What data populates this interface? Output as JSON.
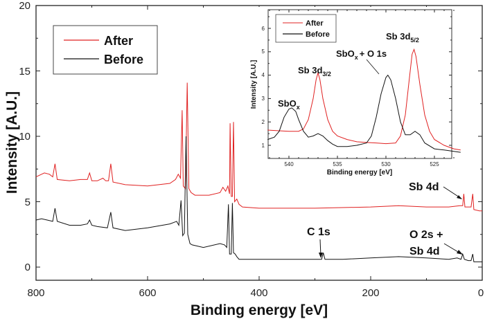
{
  "chart_data": [
    {
      "type": "line",
      "xlabel": "Binding energy [eV]",
      "ylabel": "Intensity [A.U.]",
      "xlim": [
        800,
        0
      ],
      "ylim": [
        -1,
        20
      ],
      "x_reversed": true,
      "xticks": [
        "800",
        "600",
        "400",
        "200",
        "0"
      ],
      "yticks": [
        "0",
        "5",
        "10",
        "15",
        "20"
      ],
      "legend": {
        "placement": "top-left",
        "entries": [
          "After",
          "Before"
        ]
      },
      "grid": false,
      "series": [
        {
          "name": "After",
          "color": "#e02020",
          "x": [
            800,
            790,
            785,
            776,
            770,
            766,
            762,
            740,
            720,
            708,
            704,
            700,
            690,
            680,
            675,
            670,
            666,
            662,
            640,
            600,
            560,
            550,
            545,
            541,
            538,
            536,
            532,
            529,
            526,
            522,
            515,
            490,
            470,
            465,
            460,
            456,
            453,
            452,
            450,
            448,
            446,
            444,
            440,
            436,
            430,
            400,
            300,
            200,
            150,
            100,
            60,
            40,
            35,
            33,
            31,
            26,
            20,
            17,
            15,
            5,
            0
          ],
          "y": [
            6.9,
            7.1,
            7.2,
            7.1,
            6.9,
            7.9,
            6.7,
            6.6,
            6.7,
            6.7,
            7.2,
            6.6,
            6.6,
            6.8,
            6.6,
            6.6,
            7.9,
            6.5,
            6.3,
            6.2,
            6.4,
            6.7,
            7.1,
            6.8,
            12.0,
            6.2,
            6.0,
            14.1,
            6.0,
            5.7,
            5.5,
            5.5,
            5.7,
            6.1,
            5.8,
            6.2,
            5.6,
            11.0,
            5.4,
            5.4,
            11.1,
            5.0,
            5.2,
            4.8,
            4.6,
            4.5,
            4.5,
            4.6,
            4.7,
            4.6,
            4.6,
            4.7,
            4.7,
            5.6,
            4.6,
            4.6,
            4.6,
            5.6,
            4.4,
            4.3,
            4.3
          ]
        },
        {
          "name": "Before",
          "color": "#111111",
          "x": [
            800,
            790,
            780,
            770,
            766,
            762,
            740,
            720,
            708,
            704,
            700,
            690,
            672,
            666,
            662,
            640,
            600,
            560,
            548,
            544,
            540,
            537,
            534,
            531,
            528,
            524,
            520,
            500,
            470,
            462,
            458,
            455,
            453,
            450,
            448,
            446,
            443,
            440,
            436,
            400,
            300,
            288,
            285,
            282,
            250,
            200,
            150,
            100,
            60,
            45,
            38,
            35,
            32,
            25,
            20,
            17,
            15,
            5,
            0
          ],
          "y": [
            3.6,
            3.7,
            3.6,
            3.5,
            4.5,
            3.5,
            3.2,
            3.2,
            3.3,
            3.6,
            3.2,
            3.1,
            3.0,
            4.2,
            3.0,
            2.8,
            3.0,
            3.3,
            3.5,
            3.2,
            5.1,
            2.4,
            2.6,
            10.0,
            2.5,
            1.8,
            1.7,
            1.5,
            1.8,
            1.7,
            1.5,
            4.8,
            1.0,
            1.0,
            4.9,
            1.1,
            1.0,
            0.8,
            0.6,
            0.6,
            0.6,
            0.6,
            1.1,
            0.6,
            0.6,
            0.7,
            0.8,
            0.7,
            0.6,
            0.7,
            0.6,
            1.0,
            0.6,
            0.5,
            0.5,
            1.0,
            0.4,
            0.4,
            0.4
          ]
        }
      ],
      "annotations": [
        "Sb 4d",
        "C 1s",
        "O 2s +",
        "Sb 4d"
      ]
    },
    {
      "type": "line",
      "xlabel": "Binding energy [eV]",
      "ylabel": "Intensity [A.U.]",
      "xlim": [
        542.2,
        522.3
      ],
      "ylim": [
        0.44,
        6.8
      ],
      "x_reversed": true,
      "xticks": [
        "540",
        "535",
        "530",
        "525"
      ],
      "yticks": [
        "1",
        "2",
        "3",
        "4",
        "5",
        "6"
      ],
      "legend": {
        "placement": "top-left",
        "entries": [
          "After",
          "Before"
        ]
      },
      "grid": false,
      "series": [
        {
          "name": "After",
          "color": "#e02020",
          "x": [
            542.2,
            541,
            540,
            539,
            538.5,
            538,
            537.5,
            537.2,
            537.0,
            536.8,
            536.5,
            536,
            535.5,
            535,
            534,
            533,
            532,
            531,
            530,
            529,
            528.5,
            528,
            527.6,
            527.3,
            527.1,
            526.9,
            526.5,
            526,
            525.5,
            525,
            524,
            523,
            522.3
          ],
          "y": [
            1.65,
            1.62,
            1.6,
            1.6,
            1.7,
            2.1,
            3.0,
            3.8,
            4.1,
            3.8,
            3.0,
            2.1,
            1.6,
            1.4,
            1.25,
            1.15,
            1.12,
            1.1,
            1.07,
            1.1,
            1.4,
            2.3,
            3.8,
            4.9,
            5.1,
            4.8,
            3.6,
            2.3,
            1.6,
            1.25,
            1.0,
            0.85,
            0.8
          ]
        },
        {
          "name": "Before",
          "color": "#111111",
          "x": [
            542.2,
            541.5,
            541,
            540.5,
            540,
            539.7,
            539.3,
            539,
            538.5,
            538,
            537.5,
            537,
            536.5,
            536,
            535.5,
            535,
            534,
            533,
            532,
            531.5,
            531,
            530.5,
            530,
            529.8,
            529.5,
            529,
            528.5,
            528,
            527.5,
            527,
            526.5,
            526,
            525,
            524,
            522.3
          ],
          "y": [
            1.25,
            1.35,
            1.6,
            2.2,
            2.55,
            2.6,
            2.45,
            2.1,
            1.6,
            1.35,
            1.4,
            1.5,
            1.4,
            1.2,
            1.05,
            0.95,
            0.95,
            1.0,
            1.1,
            1.4,
            2.2,
            3.2,
            3.9,
            4.0,
            3.8,
            3.0,
            2.0,
            1.45,
            1.45,
            1.6,
            1.45,
            1.1,
            0.85,
            0.8,
            0.7
          ]
        }
      ],
      "annotations": {
        "sbox": {
          "main": "SbO",
          "sub": "x"
        },
        "sb3d32": {
          "main": "Sb 3d",
          "sub": "3/2"
        },
        "sbox_o1s": {
          "main": "SbO",
          "sub": "x",
          "rest": "+ O 1s"
        },
        "sb3d52": {
          "main": "Sb 3d",
          "sub": "5/2"
        }
      }
    }
  ]
}
